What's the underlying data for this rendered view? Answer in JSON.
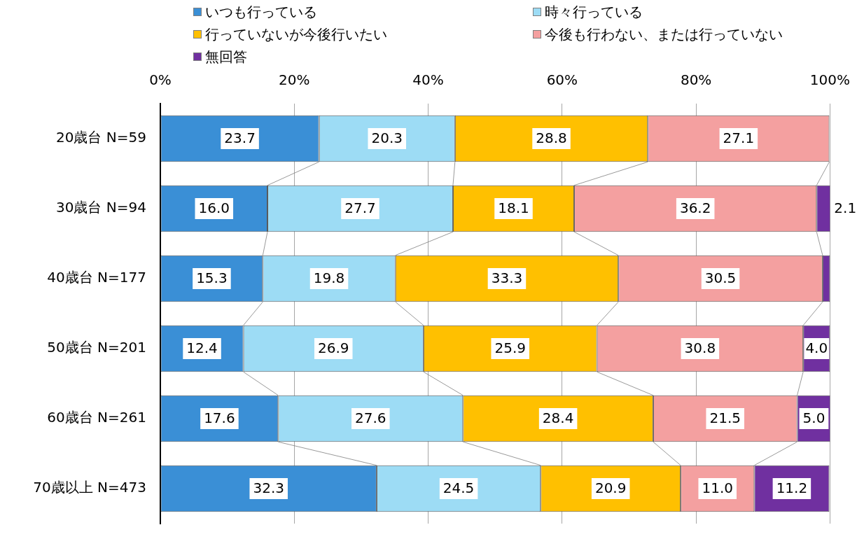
{
  "chart_data": {
    "type": "bar",
    "orientation": "horizontal",
    "stacked": true,
    "categories": [
      "20歳台 N=59",
      "30歳台 N=94",
      "40歳台 N=177",
      "50歳台 N=201",
      "60歳台 N=261",
      "70歳以上 N=473"
    ],
    "series": [
      {
        "name": "いつも行っている",
        "color": "#3a8fd6",
        "values": [
          23.7,
          16.0,
          15.3,
          12.4,
          17.6,
          32.3
        ],
        "value_labels": [
          "23.7",
          "16.0",
          "15.3",
          "12.4",
          "17.6",
          "32.3"
        ]
      },
      {
        "name": "時々行っている",
        "color": "#9ddcf5",
        "values": [
          20.3,
          27.7,
          19.8,
          26.9,
          27.6,
          24.5
        ],
        "value_labels": [
          "20.3",
          "27.7",
          "19.8",
          "26.9",
          "27.6",
          "24.5"
        ]
      },
      {
        "name": "行っていないが今後行いたい",
        "color": "#ffc000",
        "values": [
          28.8,
          18.1,
          33.3,
          25.9,
          28.4,
          20.9
        ],
        "value_labels": [
          "28.8",
          "18.1",
          "33.3",
          "25.9",
          "28.4",
          "20.9"
        ]
      },
      {
        "name": "今後も行わない、または行っていない",
        "color": "#f4a0a0",
        "values": [
          27.1,
          36.2,
          30.5,
          30.8,
          21.5,
          11.0
        ],
        "value_labels": [
          "27.1",
          "36.2",
          "30.5",
          "30.8",
          "21.5",
          "11.0"
        ]
      },
      {
        "name": "無回答",
        "color": "#7030a0",
        "values": [
          null,
          2.1,
          1.1,
          4.0,
          5.0,
          11.2
        ],
        "value_labels": [
          null,
          "2.1",
          null,
          "4.0",
          "5.0",
          "11.2"
        ]
      }
    ],
    "xlim": [
      0,
      100
    ],
    "xticks": [
      {
        "value": 0,
        "label": "0%"
      },
      {
        "value": 20,
        "label": "20%"
      },
      {
        "value": 40,
        "label": "40%"
      },
      {
        "value": 60,
        "label": "60%"
      },
      {
        "value": 80,
        "label": "80%"
      },
      {
        "value": 100,
        "label": "100%"
      }
    ],
    "grid": "x",
    "legend": "top"
  }
}
